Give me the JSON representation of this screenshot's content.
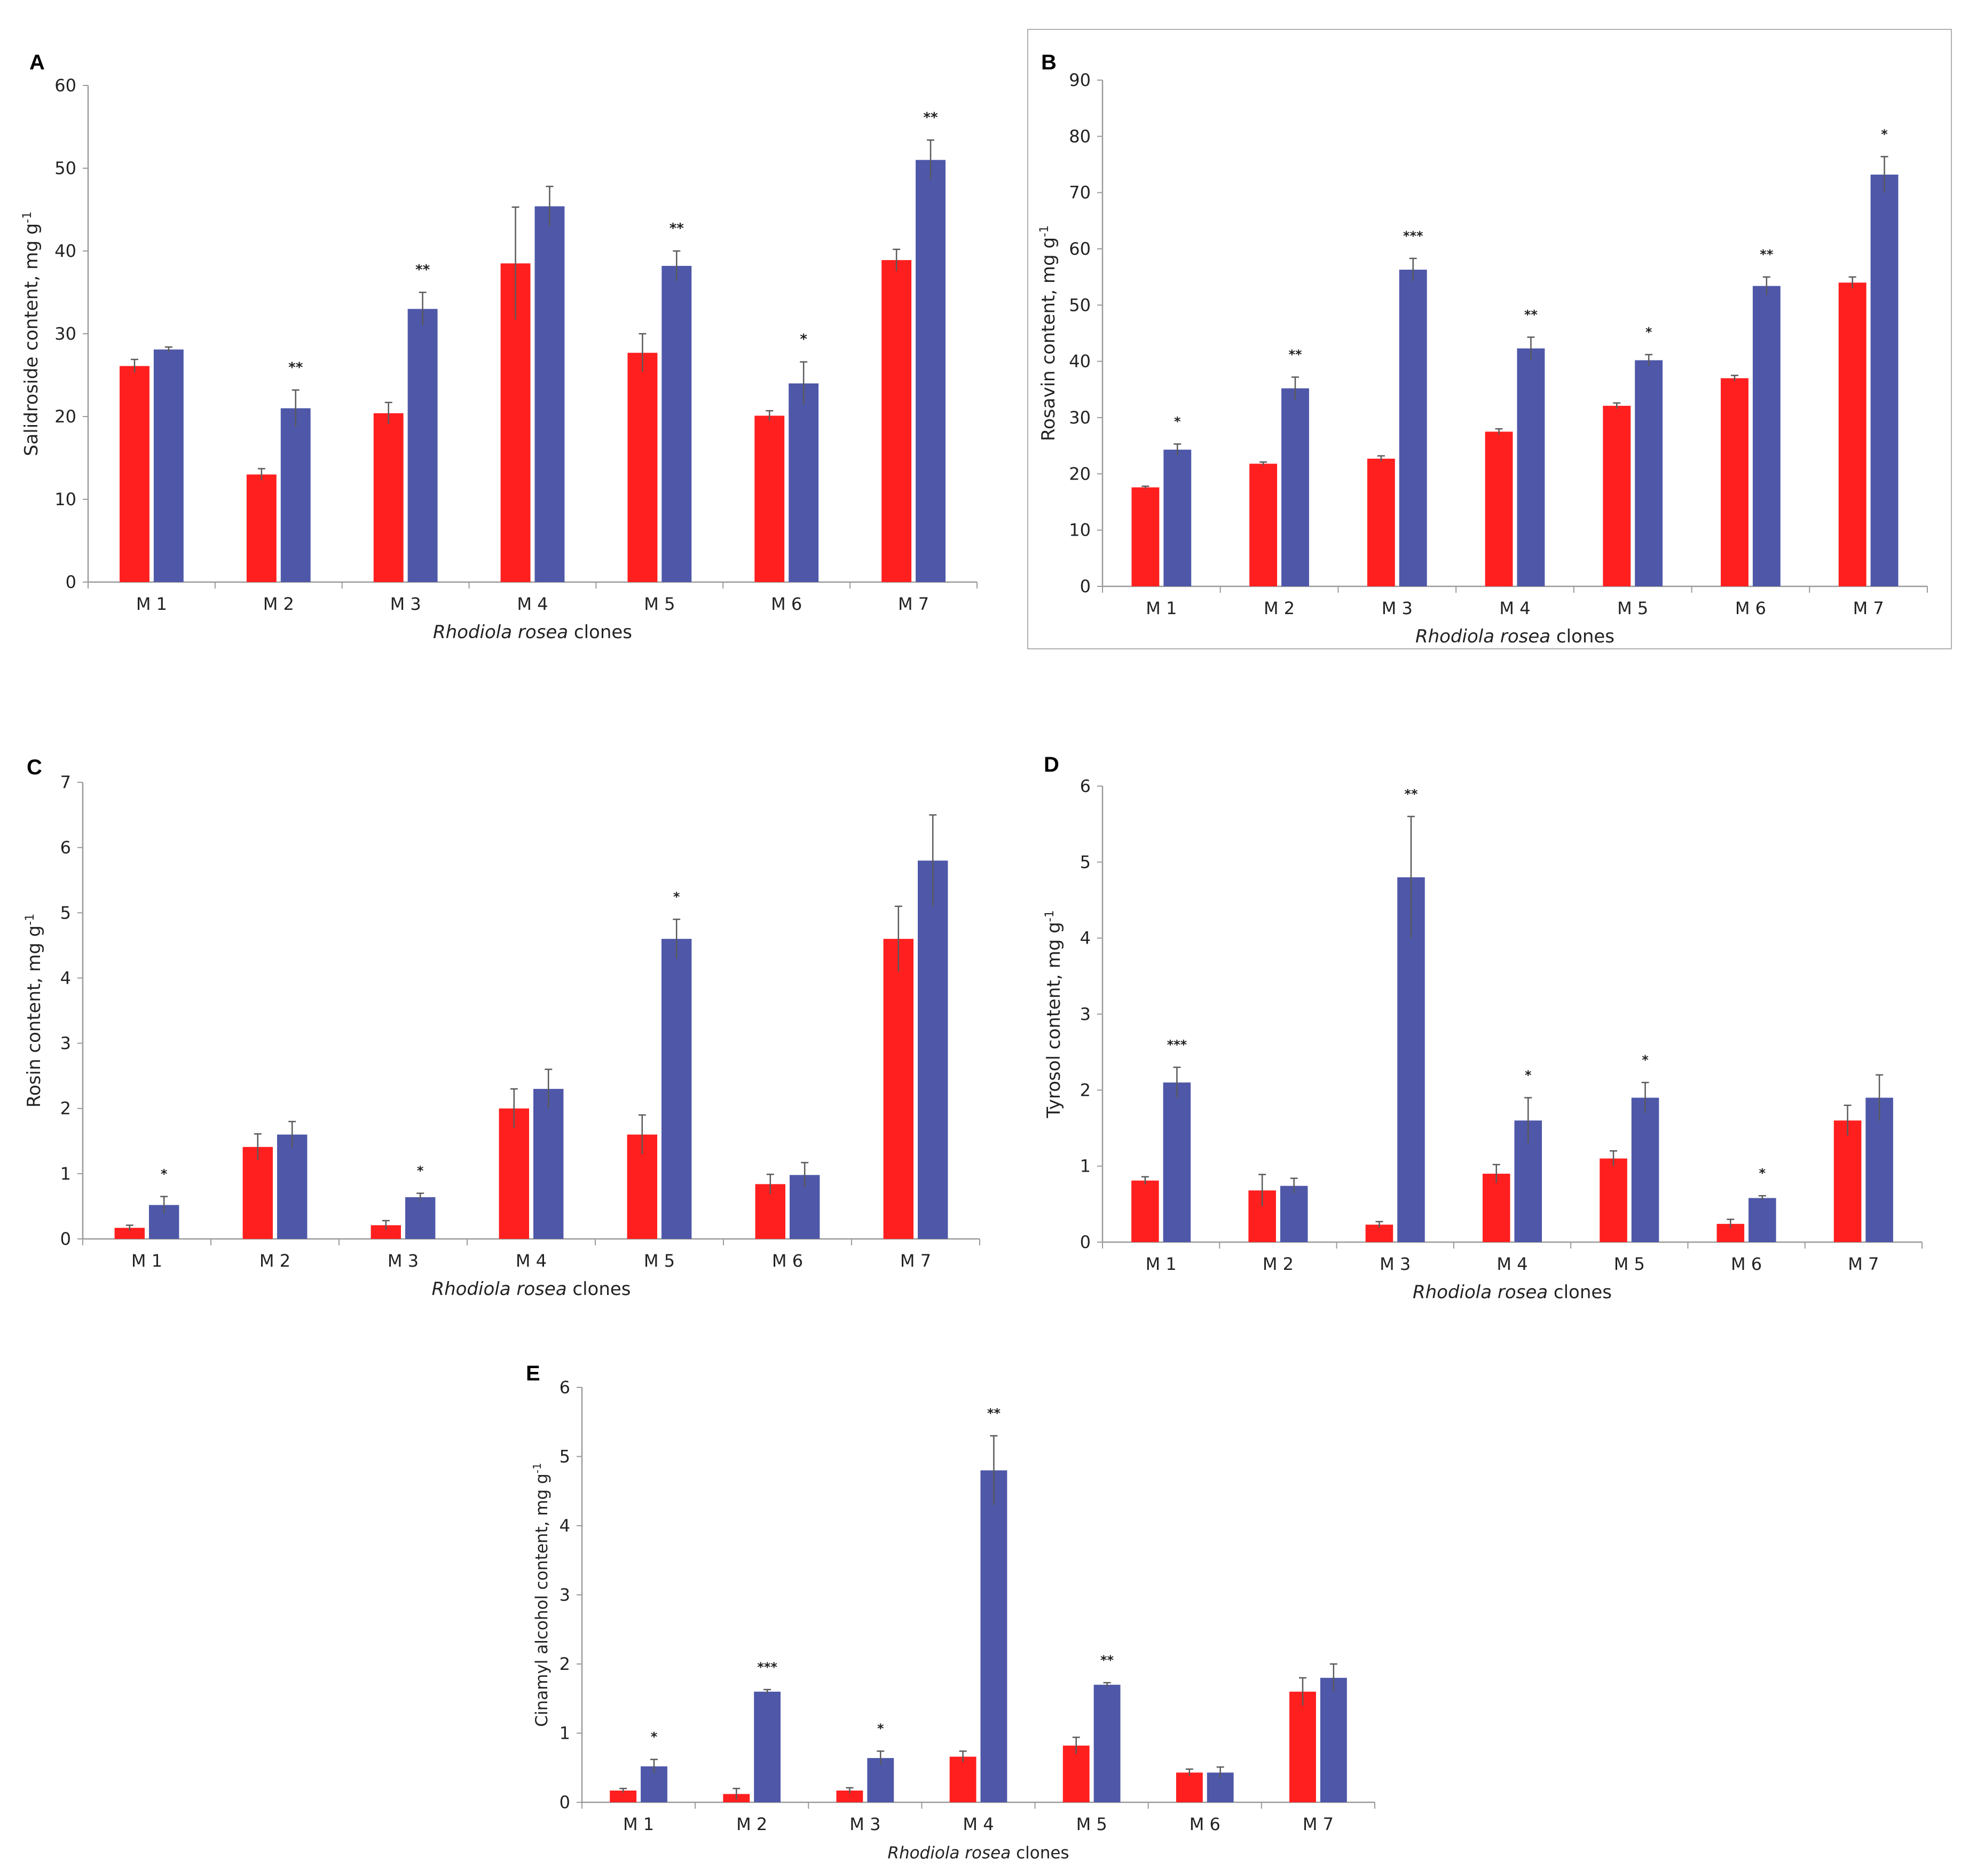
{
  "colors": {
    "series1": "#ff1f1f",
    "series2": "#4e57a8",
    "axis": "#9a9a9a",
    "error": "#5a5a5a",
    "frame": "#b0b0b0"
  },
  "chart_data": [
    {
      "id": "A",
      "type": "bar",
      "panel_label": "A",
      "ylabel": "Salidroside content, mg g-1",
      "xlabel_italic": "Rhodiola rosea",
      "xlabel_rest": " clones",
      "categories": [
        "M 1",
        "M 2",
        "M 3",
        "M 4",
        "M 5",
        "M 6",
        "M 7"
      ],
      "ylim": [
        0,
        60
      ],
      "yticks": [
        0,
        10,
        20,
        30,
        40,
        50,
        60
      ],
      "series": [
        {
          "values": [
            26.1,
            13.0,
            20.4,
            38.5,
            27.7,
            20.1,
            38.9
          ],
          "errors": [
            0.8,
            0.7,
            1.3,
            6.8,
            2.3,
            0.6,
            1.3
          ]
        },
        {
          "values": [
            28.1,
            21.0,
            33.0,
            45.4,
            38.2,
            24.0,
            51.0
          ],
          "errors": [
            0.3,
            2.2,
            2.0,
            2.4,
            1.8,
            2.6,
            2.4
          ]
        }
      ],
      "significance": [
        "",
        "**",
        "**",
        "",
        "**",
        "*",
        "**"
      ],
      "framed": false
    },
    {
      "id": "B",
      "type": "bar",
      "panel_label": "B",
      "ylabel": "Rosavin content, mg g-1",
      "xlabel_italic": "Rhodiola rosea",
      "xlabel_rest": " clones",
      "categories": [
        "M 1",
        "M 2",
        "M 3",
        "M 4",
        "M 5",
        "M 6",
        "M 7"
      ],
      "ylim": [
        0,
        90
      ],
      "yticks": [
        0,
        10,
        20,
        30,
        40,
        50,
        60,
        70,
        80,
        90
      ],
      "series": [
        {
          "values": [
            17.6,
            21.8,
            22.7,
            27.5,
            32.1,
            37.0,
            54.0
          ],
          "errors": [
            0.2,
            0.3,
            0.5,
            0.5,
            0.5,
            0.5,
            1.0
          ]
        },
        {
          "values": [
            24.3,
            35.2,
            56.3,
            42.3,
            40.2,
            53.4,
            73.2
          ],
          "errors": [
            1.0,
            2.0,
            2.0,
            2.0,
            1.0,
            1.6,
            3.2
          ]
        }
      ],
      "significance": [
        "*",
        "**",
        "***",
        "**",
        "*",
        "**",
        "*"
      ],
      "framed": true
    },
    {
      "id": "C",
      "type": "bar",
      "panel_label": "C",
      "ylabel": "Rosin content, mg g-1",
      "xlabel_italic": "Rhodiola rosea",
      "xlabel_rest": " clones",
      "categories": [
        "M 1",
        "M 2",
        "M 3",
        "M 4",
        "M 5",
        "M 6",
        "M 7"
      ],
      "ylim": [
        0,
        7
      ],
      "yticks": [
        0,
        1,
        2,
        3,
        4,
        5,
        6,
        7
      ],
      "series": [
        {
          "values": [
            0.17,
            1.41,
            0.21,
            2.0,
            1.6,
            0.84,
            4.6
          ],
          "errors": [
            0.04,
            0.2,
            0.07,
            0.3,
            0.3,
            0.15,
            0.5
          ]
        },
        {
          "values": [
            0.52,
            1.6,
            0.64,
            2.3,
            4.6,
            0.98,
            5.8
          ],
          "errors": [
            0.13,
            0.2,
            0.06,
            0.3,
            0.3,
            0.19,
            0.7
          ]
        }
      ],
      "significance": [
        "*",
        "",
        "*",
        "",
        "*",
        "",
        ""
      ],
      "framed": false
    },
    {
      "id": "D",
      "type": "bar",
      "panel_label": "D",
      "ylabel": "Tyrosol content, mg g-1",
      "xlabel_italic": "Rhodiola rosea",
      "xlabel_rest": " clones",
      "categories": [
        "M 1",
        "M 2",
        "M 3",
        "M 4",
        "M 5",
        "M 6",
        "M 7"
      ],
      "ylim": [
        0,
        6
      ],
      "yticks": [
        0,
        1,
        2,
        3,
        4,
        5,
        6
      ],
      "series": [
        {
          "values": [
            0.81,
            0.68,
            0.23,
            0.9,
            1.1,
            0.24,
            1.6
          ],
          "errors": [
            0.05,
            0.21,
            0.04,
            0.12,
            0.1,
            0.06,
            0.2
          ]
        },
        {
          "values": [
            2.1,
            0.74,
            4.8,
            1.6,
            1.9,
            0.58,
            1.9
          ],
          "errors": [
            0.2,
            0.1,
            0.8,
            0.3,
            0.2,
            0.03,
            0.3
          ]
        }
      ],
      "significance": [
        "***",
        "",
        "**",
        "*",
        "*",
        "*",
        ""
      ],
      "framed": false
    },
    {
      "id": "E",
      "type": "bar",
      "panel_label": "E",
      "ylabel": "Cinamyl alcohol content, mg g-1",
      "xlabel_italic": "Rhodiola rosea",
      "xlabel_rest": " clones",
      "categories": [
        "M 1",
        "M 2",
        "M 3",
        "M 4",
        "M 5",
        "M 6",
        "M 7"
      ],
      "ylim": [
        0,
        6
      ],
      "yticks": [
        0,
        1,
        2,
        3,
        4,
        5,
        6
      ],
      "series": [
        {
          "values": [
            0.17,
            0.12,
            0.17,
            0.66,
            0.82,
            0.43,
            1.6
          ],
          "errors": [
            0.03,
            0.08,
            0.04,
            0.08,
            0.12,
            0.05,
            0.2
          ]
        },
        {
          "values": [
            0.52,
            1.6,
            0.64,
            4.8,
            1.7,
            0.43,
            1.8
          ],
          "errors": [
            0.1,
            0.03,
            0.1,
            0.5,
            0.03,
            0.08,
            0.2
          ]
        }
      ],
      "significance": [
        "*",
        "***",
        "*",
        "**",
        "**",
        "",
        ""
      ],
      "framed": false
    }
  ]
}
